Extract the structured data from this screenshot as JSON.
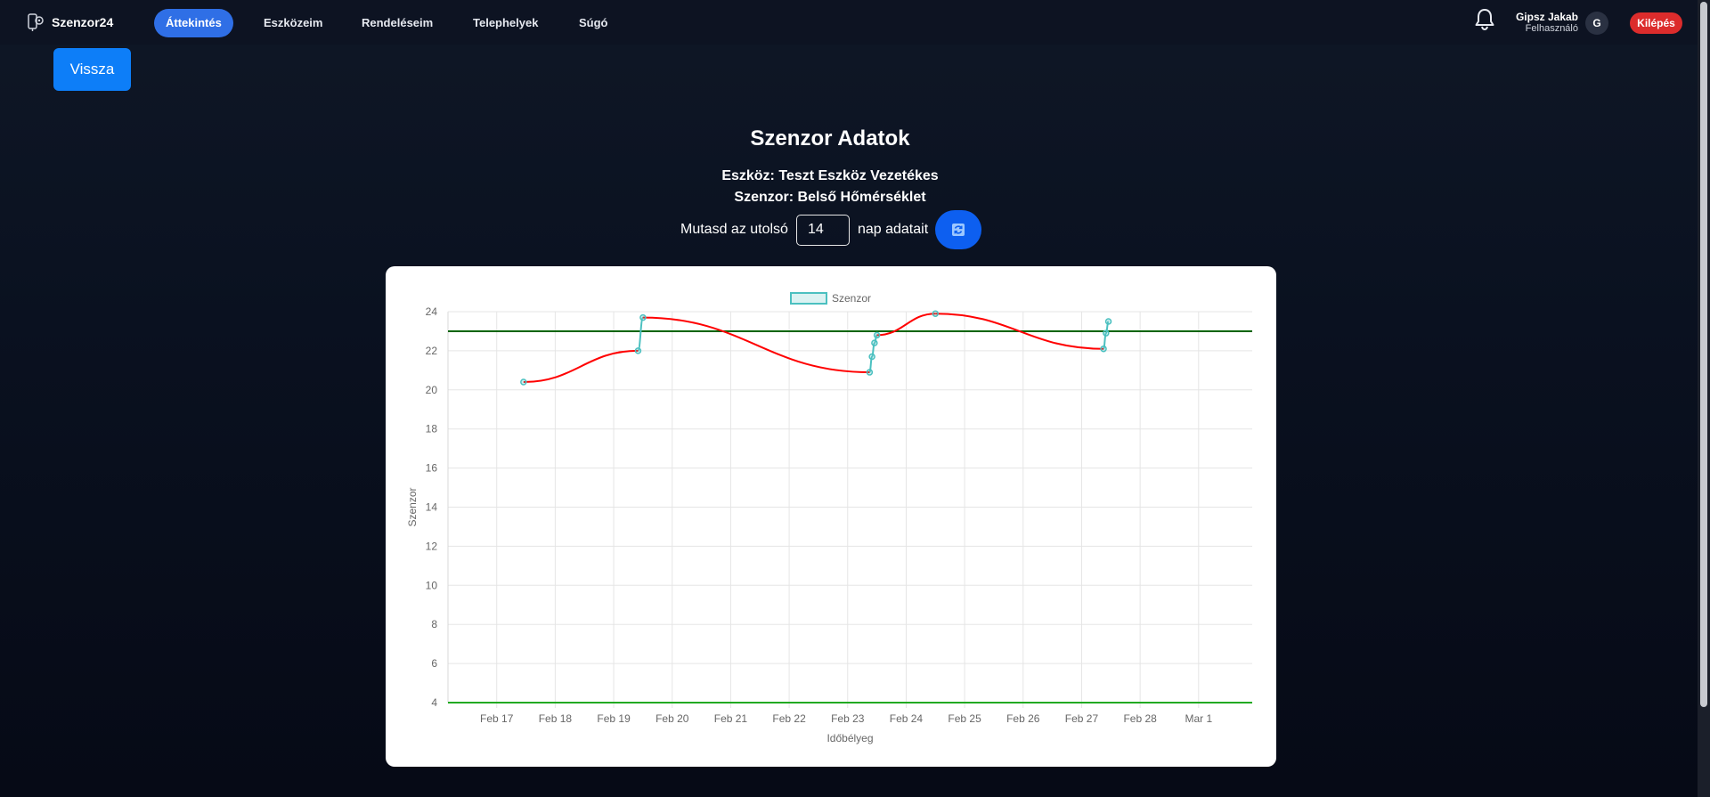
{
  "brand": {
    "name": "Szenzor24"
  },
  "nav": {
    "items": [
      {
        "label": "Áttekintés",
        "active": true
      },
      {
        "label": "Eszközeim",
        "active": false
      },
      {
        "label": "Rendeléseim",
        "active": false
      },
      {
        "label": "Telephelyek",
        "active": false
      },
      {
        "label": "Súgó",
        "active": false
      }
    ]
  },
  "user": {
    "name": "Gipsz Jakab",
    "role": "Felhasználó",
    "initial": "G"
  },
  "logout_label": "Kilépés",
  "back_label": "Vissza",
  "page": {
    "title": "Szenzor Adatok",
    "device_line": "Eszköz: Teszt Eszköz Vezetékes",
    "sensor_line": "Szenzor: Belső Hőmérséklet",
    "filter_prefix": "Mutasd az utolsó",
    "days_value": "14",
    "filter_suffix": "nap adatait"
  },
  "colors": {
    "accent": "#2f6fe6",
    "logout": "#dc2c2c",
    "line_out_of_range": "#ff0000",
    "line_in_range": "#4bc0c0",
    "upper_limit": "#006400",
    "lower_limit": "#22aa22"
  },
  "chart_data": {
    "type": "line",
    "legend": [
      "Szenzor"
    ],
    "legend_position": "top",
    "xlabel": "Időbélyeg",
    "ylabel": "Szenzor",
    "x_tick_labels": [
      "Feb 17",
      "Feb 18",
      "Feb 19",
      "Feb 20",
      "Feb 21",
      "Feb 22",
      "Feb 23",
      "Feb 24",
      "Feb 25",
      "Feb 26",
      "Feb 27",
      "Feb 28",
      "Mar 1"
    ],
    "y_ticks": [
      4,
      6,
      8,
      10,
      12,
      14,
      16,
      18,
      20,
      22,
      24
    ],
    "ylim": [
      4,
      24
    ],
    "xlim": [
      "Feb 16 04:00",
      "Mar 1 22:00"
    ],
    "grid": true,
    "series": [
      {
        "name": "Szenzor",
        "points": [
          {
            "x": "Feb 17 11:00",
            "y": 20.4
          },
          {
            "x": "Feb 19 10:00",
            "y": 22.0
          },
          {
            "x": "Feb 19 12:00",
            "y": 23.7
          },
          {
            "x": "Feb 23 09:00",
            "y": 20.9
          },
          {
            "x": "Feb 23 10:00",
            "y": 21.7
          },
          {
            "x": "Feb 23 11:00",
            "y": 22.4
          },
          {
            "x": "Feb 23 12:00",
            "y": 22.8
          },
          {
            "x": "Feb 24 12:00",
            "y": 23.9
          },
          {
            "x": "Feb 27 09:00",
            "y": 22.1
          },
          {
            "x": "Feb 27 10:00",
            "y": 22.9
          },
          {
            "x": "Feb 27 11:00",
            "y": 23.5
          }
        ]
      }
    ],
    "threshold_lines": [
      {
        "label": "upper",
        "y": 23.0
      },
      {
        "label": "lower",
        "y": 4.0
      }
    ]
  }
}
